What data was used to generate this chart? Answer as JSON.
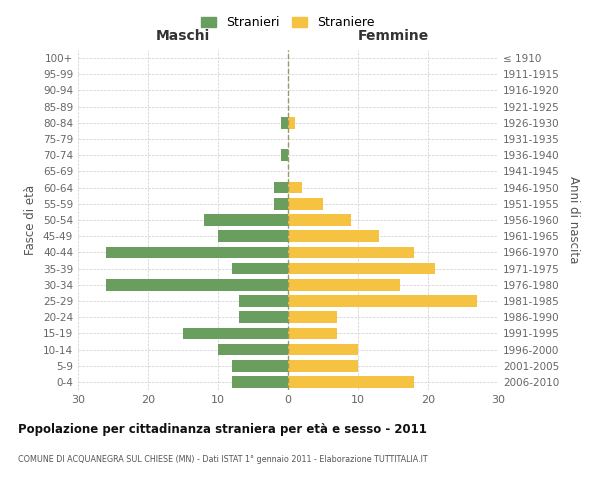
{
  "age_groups": [
    "0-4",
    "5-9",
    "10-14",
    "15-19",
    "20-24",
    "25-29",
    "30-34",
    "35-39",
    "40-44",
    "45-49",
    "50-54",
    "55-59",
    "60-64",
    "65-69",
    "70-74",
    "75-79",
    "80-84",
    "85-89",
    "90-94",
    "95-99",
    "100+"
  ],
  "birth_years": [
    "2006-2010",
    "2001-2005",
    "1996-2000",
    "1991-1995",
    "1986-1990",
    "1981-1985",
    "1976-1980",
    "1971-1975",
    "1966-1970",
    "1961-1965",
    "1956-1960",
    "1951-1955",
    "1946-1950",
    "1941-1945",
    "1936-1940",
    "1931-1935",
    "1926-1930",
    "1921-1925",
    "1916-1920",
    "1911-1915",
    "≤ 1910"
  ],
  "males": [
    8,
    8,
    10,
    15,
    7,
    7,
    26,
    8,
    26,
    10,
    12,
    2,
    2,
    0,
    1,
    0,
    1,
    0,
    0,
    0,
    0
  ],
  "females": [
    18,
    10,
    10,
    7,
    7,
    27,
    16,
    21,
    18,
    13,
    9,
    5,
    2,
    0,
    0,
    0,
    1,
    0,
    0,
    0,
    0
  ],
  "male_color": "#6a9e5e",
  "female_color": "#f5c242",
  "background_color": "#ffffff",
  "grid_color": "#cccccc",
  "title": "Popolazione per cittadinanza straniera per età e sesso - 2011",
  "subtitle": "COMUNE DI ACQUANEGRA SUL CHIESE (MN) - Dati ISTAT 1° gennaio 2011 - Elaborazione TUTTITALIA.IT",
  "ylabel_left": "Fasce di età",
  "ylabel_right": "Anni di nascita",
  "xlabel_left": "Maschi",
  "xlabel_right": "Femmine",
  "legend_male": "Stranieri",
  "legend_female": "Straniere",
  "xlim": 30
}
